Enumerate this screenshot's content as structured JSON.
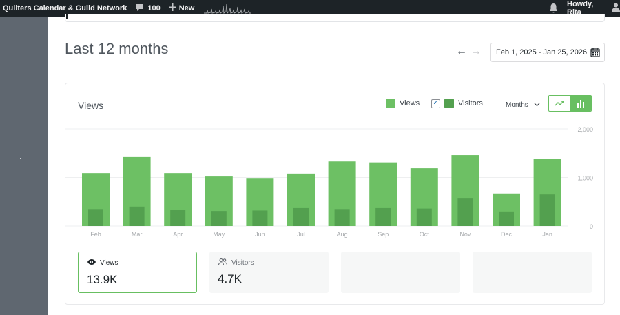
{
  "adminbar": {
    "site_name": "Quilters Calendar & Guild Network",
    "comments_count": "100",
    "new_label": "New",
    "howdy": "Howdy, Rita",
    "icons": [
      "comment-icon",
      "plus-icon",
      "sparkline-icon",
      "bell-icon",
      "user-icon"
    ]
  },
  "page": {
    "title": "Last 12 months",
    "date_range": "Feb 1, 2025 - Jan 25, 2026",
    "prev_arrow": "←",
    "next_arrow": "→"
  },
  "card": {
    "title": "Views",
    "legend_views": "Views",
    "legend_visitors": "Visitors",
    "period": "Months"
  },
  "colors": {
    "views": "#6dc064",
    "visitors": "#53a04f",
    "accent": "#68bf61"
  },
  "chart_data": {
    "type": "bar",
    "categories": [
      "Feb",
      "Mar",
      "Apr",
      "May",
      "Jun",
      "Jul",
      "Aug",
      "Sep",
      "Oct",
      "Nov",
      "Dec",
      "Jan"
    ],
    "series": [
      {
        "name": "Views",
        "values": [
          1090,
          1420,
          1090,
          1020,
          990,
          1080,
          1330,
          1310,
          1190,
          1460,
          670,
          1380
        ]
      },
      {
        "name": "Visitors",
        "values": [
          350,
          400,
          330,
          310,
          320,
          370,
          350,
          370,
          360,
          580,
          300,
          650
        ]
      }
    ],
    "yticks": [
      "2,000",
      "1,000",
      "0"
    ],
    "ylim": [
      0,
      2000
    ],
    "grid": true,
    "legend": "top-right"
  },
  "stats": [
    {
      "label": "Views",
      "value": "13.9K"
    },
    {
      "label": "Visitors",
      "value": "4.7K"
    }
  ]
}
